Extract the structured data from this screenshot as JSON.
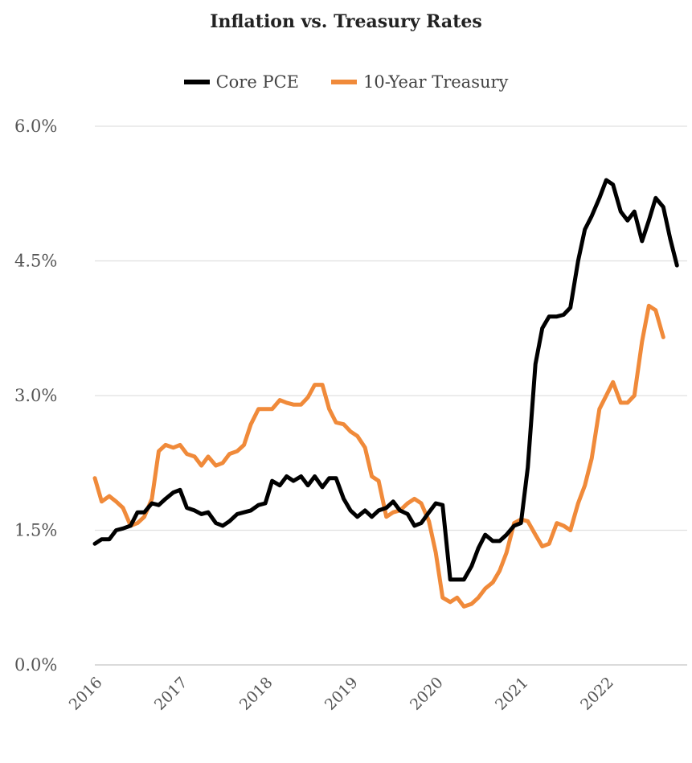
{
  "chart_data": {
    "type": "line",
    "title": "Inflation vs. Treasury Rates",
    "xlabel": "",
    "ylabel": "",
    "x_ticks": [
      "2016",
      "2017",
      "2018",
      "2019",
      "2020",
      "2021",
      "2022"
    ],
    "y_ticks": [
      "0.0%",
      "1.5%",
      "3.0%",
      "4.5%",
      "6.0%"
    ],
    "ylim": [
      0,
      6
    ],
    "xlim": [
      2016.0,
      2022.95
    ],
    "grid": "horizontal",
    "legend_position": "top-center",
    "series": [
      {
        "name": "Core PCE",
        "color": "#000000",
        "points": [
          [
            2016.0,
            1.35
          ],
          [
            2016.08,
            1.4
          ],
          [
            2016.17,
            1.4
          ],
          [
            2016.25,
            1.5
          ],
          [
            2016.33,
            1.52
          ],
          [
            2016.42,
            1.55
          ],
          [
            2016.5,
            1.7
          ],
          [
            2016.58,
            1.7
          ],
          [
            2016.67,
            1.8
          ],
          [
            2016.75,
            1.78
          ],
          [
            2016.83,
            1.85
          ],
          [
            2016.92,
            1.92
          ],
          [
            2017.0,
            1.95
          ],
          [
            2017.08,
            1.75
          ],
          [
            2017.17,
            1.72
          ],
          [
            2017.25,
            1.68
          ],
          [
            2017.33,
            1.7
          ],
          [
            2017.42,
            1.58
          ],
          [
            2017.5,
            1.55
          ],
          [
            2017.58,
            1.6
          ],
          [
            2017.67,
            1.68
          ],
          [
            2017.75,
            1.7
          ],
          [
            2017.83,
            1.72
          ],
          [
            2017.92,
            1.78
          ],
          [
            2018.0,
            1.8
          ],
          [
            2018.08,
            2.05
          ],
          [
            2018.17,
            2.0
          ],
          [
            2018.25,
            2.1
          ],
          [
            2018.33,
            2.05
          ],
          [
            2018.42,
            2.1
          ],
          [
            2018.5,
            2.0
          ],
          [
            2018.58,
            2.1
          ],
          [
            2018.67,
            1.98
          ],
          [
            2018.75,
            2.08
          ],
          [
            2018.83,
            2.08
          ],
          [
            2018.92,
            1.85
          ],
          [
            2019.0,
            1.72
          ],
          [
            2019.08,
            1.65
          ],
          [
            2019.17,
            1.72
          ],
          [
            2019.25,
            1.65
          ],
          [
            2019.33,
            1.72
          ],
          [
            2019.42,
            1.75
          ],
          [
            2019.5,
            1.82
          ],
          [
            2019.58,
            1.72
          ],
          [
            2019.67,
            1.68
          ],
          [
            2019.75,
            1.55
          ],
          [
            2019.83,
            1.58
          ],
          [
            2019.92,
            1.7
          ],
          [
            2020.0,
            1.8
          ],
          [
            2020.08,
            1.78
          ],
          [
            2020.17,
            0.95
          ],
          [
            2020.25,
            0.95
          ],
          [
            2020.33,
            0.95
          ],
          [
            2020.42,
            1.1
          ],
          [
            2020.5,
            1.3
          ],
          [
            2020.58,
            1.45
          ],
          [
            2020.67,
            1.38
          ],
          [
            2020.75,
            1.38
          ],
          [
            2020.83,
            1.45
          ],
          [
            2020.92,
            1.55
          ],
          [
            2021.0,
            1.58
          ],
          [
            2021.08,
            2.2
          ],
          [
            2021.17,
            3.35
          ],
          [
            2021.25,
            3.75
          ],
          [
            2021.33,
            3.88
          ],
          [
            2021.42,
            3.88
          ],
          [
            2021.5,
            3.9
          ],
          [
            2021.58,
            3.98
          ],
          [
            2021.67,
            4.5
          ],
          [
            2021.75,
            4.85
          ],
          [
            2021.83,
            5.0
          ],
          [
            2021.92,
            5.2
          ],
          [
            2022.0,
            5.4
          ],
          [
            2022.08,
            5.35
          ],
          [
            2022.17,
            5.05
          ],
          [
            2022.25,
            4.95
          ],
          [
            2022.33,
            5.05
          ],
          [
            2022.42,
            4.72
          ],
          [
            2022.5,
            4.95
          ],
          [
            2022.58,
            5.2
          ],
          [
            2022.67,
            5.1
          ],
          [
            2022.75,
            4.75
          ],
          [
            2022.83,
            4.45
          ]
        ]
      },
      {
        "name": "10-Year Treasury",
        "color": "#f08a3a",
        "points": [
          [
            2016.0,
            2.08
          ],
          [
            2016.08,
            1.82
          ],
          [
            2016.17,
            1.88
          ],
          [
            2016.25,
            1.82
          ],
          [
            2016.33,
            1.75
          ],
          [
            2016.42,
            1.55
          ],
          [
            2016.5,
            1.58
          ],
          [
            2016.58,
            1.65
          ],
          [
            2016.67,
            1.85
          ],
          [
            2016.75,
            2.38
          ],
          [
            2016.83,
            2.45
          ],
          [
            2016.92,
            2.42
          ],
          [
            2017.0,
            2.45
          ],
          [
            2017.08,
            2.35
          ],
          [
            2017.17,
            2.32
          ],
          [
            2017.25,
            2.22
          ],
          [
            2017.33,
            2.32
          ],
          [
            2017.42,
            2.22
          ],
          [
            2017.5,
            2.25
          ],
          [
            2017.58,
            2.35
          ],
          [
            2017.67,
            2.38
          ],
          [
            2017.75,
            2.45
          ],
          [
            2017.83,
            2.68
          ],
          [
            2017.92,
            2.85
          ],
          [
            2018.0,
            2.85
          ],
          [
            2018.08,
            2.85
          ],
          [
            2018.17,
            2.95
          ],
          [
            2018.25,
            2.92
          ],
          [
            2018.33,
            2.9
          ],
          [
            2018.42,
            2.9
          ],
          [
            2018.5,
            2.98
          ],
          [
            2018.58,
            3.12
          ],
          [
            2018.67,
            3.12
          ],
          [
            2018.75,
            2.85
          ],
          [
            2018.83,
            2.7
          ],
          [
            2018.92,
            2.68
          ],
          [
            2019.0,
            2.6
          ],
          [
            2019.08,
            2.55
          ],
          [
            2019.17,
            2.42
          ],
          [
            2019.25,
            2.1
          ],
          [
            2019.33,
            2.05
          ],
          [
            2019.42,
            1.65
          ],
          [
            2019.5,
            1.7
          ],
          [
            2019.58,
            1.72
          ],
          [
            2019.67,
            1.8
          ],
          [
            2019.75,
            1.85
          ],
          [
            2019.83,
            1.8
          ],
          [
            2019.92,
            1.6
          ],
          [
            2020.0,
            1.25
          ],
          [
            2020.08,
            0.75
          ],
          [
            2020.17,
            0.7
          ],
          [
            2020.25,
            0.75
          ],
          [
            2020.33,
            0.65
          ],
          [
            2020.42,
            0.68
          ],
          [
            2020.5,
            0.75
          ],
          [
            2020.58,
            0.85
          ],
          [
            2020.67,
            0.92
          ],
          [
            2020.75,
            1.05
          ],
          [
            2020.83,
            1.25
          ],
          [
            2020.92,
            1.58
          ],
          [
            2021.0,
            1.62
          ],
          [
            2021.08,
            1.6
          ],
          [
            2021.17,
            1.45
          ],
          [
            2021.25,
            1.32
          ],
          [
            2021.33,
            1.35
          ],
          [
            2021.42,
            1.58
          ],
          [
            2021.5,
            1.55
          ],
          [
            2021.58,
            1.5
          ],
          [
            2021.67,
            1.8
          ],
          [
            2021.75,
            2.0
          ],
          [
            2021.83,
            2.3
          ],
          [
            2021.92,
            2.85
          ],
          [
            2022.0,
            3.0
          ],
          [
            2022.08,
            3.15
          ],
          [
            2022.17,
            2.92
          ],
          [
            2022.25,
            2.92
          ],
          [
            2022.33,
            3.0
          ],
          [
            2022.42,
            3.6
          ],
          [
            2022.5,
            4.0
          ],
          [
            2022.58,
            3.95
          ],
          [
            2022.67,
            3.65
          ]
        ]
      }
    ]
  }
}
